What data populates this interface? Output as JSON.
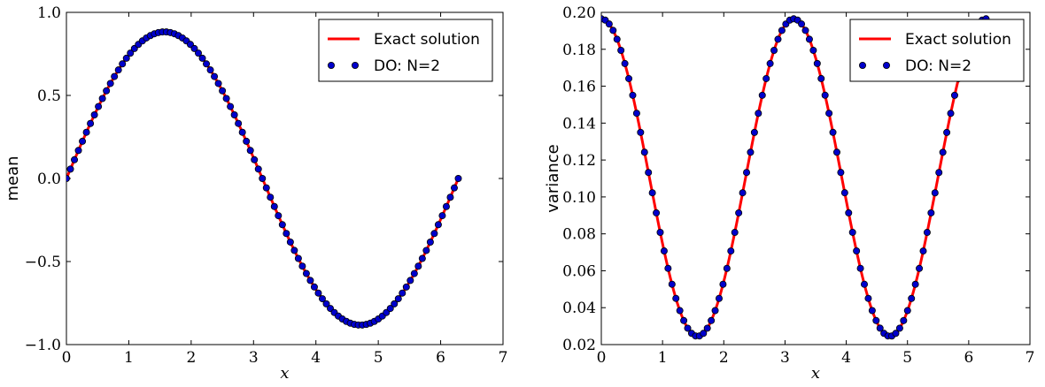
{
  "chart_data": [
    {
      "type": "line",
      "title": "",
      "xlabel": "x",
      "ylabel": "mean",
      "xlim": [
        0,
        7
      ],
      "ylim": [
        -1.0,
        1.0
      ],
      "xticks": [
        0,
        1,
        2,
        3,
        4,
        5,
        6,
        7
      ],
      "xtick_labels": [
        "0",
        "1",
        "2",
        "3",
        "4",
        "5",
        "6",
        "7"
      ],
      "yticks": [
        -1.0,
        -0.5,
        0.0,
        0.5,
        1.0
      ],
      "ytick_labels": [
        "−1.0",
        "−0.5",
        "0.0",
        "0.5",
        "1.0"
      ],
      "grid": false,
      "legend_position": "top-right",
      "x": [
        0.0,
        0.0641,
        0.1282,
        0.1923,
        0.2565,
        0.3206,
        0.3847,
        0.4488,
        0.5129,
        0.577,
        0.6411,
        0.7052,
        0.7694,
        0.8335,
        0.8976,
        0.9617,
        1.0258,
        1.0899,
        1.154,
        1.2181,
        1.2823,
        1.3464,
        1.4105,
        1.4746,
        1.5387,
        1.6028,
        1.6669,
        1.731,
        1.7952,
        1.8593,
        1.9234,
        1.9875,
        2.0516,
        2.1157,
        2.1798,
        2.2439,
        2.3081,
        2.3722,
        2.4363,
        2.5004,
        2.5645,
        2.6286,
        2.6927,
        2.7568,
        2.821,
        2.8851,
        2.9492,
        3.0133,
        3.0774,
        3.1415,
        3.2056,
        3.2697,
        3.3339,
        3.398,
        3.4621,
        3.5262,
        3.5903,
        3.6544,
        3.7185,
        3.7826,
        3.8468,
        3.9109,
        3.975,
        4.0391,
        4.1032,
        4.1673,
        4.2314,
        4.2955,
        4.3597,
        4.4238,
        4.4879,
        4.552,
        4.6161,
        4.6802,
        4.7443,
        4.8084,
        4.8726,
        4.9367,
        5.0008,
        5.0649,
        5.129,
        5.1931,
        5.2572,
        5.3213,
        5.3855,
        5.4496,
        5.5137,
        5.5778,
        5.6419,
        5.706,
        5.7701,
        5.8342,
        5.8984,
        5.9625,
        6.0266,
        6.0907,
        6.1548,
        6.2189,
        6.2831
      ],
      "series": [
        {
          "name": "Exact solution",
          "style": "line",
          "color": "#ff0000",
          "function": "0.8825*sin(x)"
        },
        {
          "name": "DO: N=2",
          "style": "markers",
          "color": "#0000cc",
          "values": [
            0.0,
            0.0565,
            0.1128,
            0.1686,
            0.2236,
            0.2775,
            0.3303,
            0.3815,
            0.4309,
            0.4783,
            0.5236,
            0.5664,
            0.6065,
            0.6439,
            0.6783,
            0.7096,
            0.7376,
            0.7623,
            0.8144,
            0.8318,
            0.8457,
            0.8563,
            0.8636,
            0.8674,
            0.8678,
            0.8648,
            0.8585,
            0.8488,
            0.8358,
            0.8196,
            0.8003,
            0.7779,
            0.7525,
            0.7243,
            0.6934,
            0.66,
            0.6241,
            0.586,
            0.5457,
            0.5035,
            0.4596,
            0.414,
            0.3671,
            0.319,
            0.2699,
            0.22,
            0.1696,
            0.1188,
            0.0564,
            0.0,
            -0.0565,
            -0.1128,
            -0.1686,
            -0.2236,
            -0.2775,
            -0.3303,
            -0.3815,
            -0.4309,
            -0.4783,
            -0.5236,
            -0.5664,
            -0.6065,
            -0.6439,
            -0.6783,
            -0.7096,
            -0.7376,
            -0.7623,
            -0.7835,
            -0.8012,
            -0.8154,
            -0.8258,
            -0.8327,
            -0.8358,
            -0.8353,
            -0.8311,
            -0.8233,
            -0.8119,
            -0.7969,
            -0.7785,
            -0.7568,
            -0.7319,
            -0.7038,
            -0.6728,
            -0.639,
            -0.6024,
            -0.5634,
            -0.522,
            -0.4784,
            -0.4327,
            -0.3853,
            -0.3362,
            -0.2856,
            -0.2338,
            -0.181,
            -0.1273,
            -0.073,
            -0.0183,
            0.0366,
            0.0
          ]
        }
      ]
    },
    {
      "type": "line",
      "title": "",
      "xlabel": "x",
      "ylabel": "variance",
      "xlim": [
        0,
        7
      ],
      "ylim": [
        0.02,
        0.2
      ],
      "xticks": [
        0,
        1,
        2,
        3,
        4,
        5,
        6,
        7
      ],
      "xtick_labels": [
        "0",
        "1",
        "2",
        "3",
        "4",
        "5",
        "6",
        "7"
      ],
      "yticks": [
        0.02,
        0.04,
        0.06,
        0.08,
        0.1,
        0.12,
        0.14,
        0.16,
        0.18,
        0.2
      ],
      "ytick_labels": [
        "0.02",
        "0.04",
        "0.06",
        "0.08",
        "0.10",
        "0.12",
        "0.14",
        "0.16",
        "0.18",
        "0.20"
      ],
      "grid": false,
      "legend_position": "top-right",
      "x": [
        0.0,
        0.0641,
        0.1282,
        0.1923,
        0.2565,
        0.3206,
        0.3847,
        0.4488,
        0.5129,
        0.577,
        0.6411,
        0.7052,
        0.7694,
        0.8335,
        0.8976,
        0.9617,
        1.0258,
        1.0899,
        1.154,
        1.2181,
        1.2823,
        1.3464,
        1.4105,
        1.4746,
        1.5387,
        1.6028,
        1.6669,
        1.731,
        1.7952,
        1.8593,
        1.9234,
        1.9875,
        2.0516,
        2.1157,
        2.1798,
        2.2439,
        2.3081,
        2.3722,
        2.4363,
        2.5004,
        2.5645,
        2.6286,
        2.6927,
        2.7568,
        2.821,
        2.8851,
        2.9492,
        3.0133,
        3.0774,
        3.1415,
        3.2056,
        3.2697,
        3.3339,
        3.398,
        3.4621,
        3.5262,
        3.5903,
        3.6544,
        3.7185,
        3.7826,
        3.8468,
        3.9109,
        3.975,
        4.0391,
        4.1032,
        4.1673,
        4.2314,
        4.2955,
        4.3597,
        4.4238,
        4.4879,
        4.552,
        4.6161,
        4.6802,
        4.7443,
        4.8084,
        4.8726,
        4.9367,
        5.0008,
        5.0649,
        5.129,
        5.1931,
        5.2572,
        5.3213,
        5.3855,
        5.4496,
        5.5137,
        5.5778,
        5.6419,
        5.706,
        5.7701,
        5.8342,
        5.8984,
        5.9625,
        6.0266,
        6.0907,
        6.1548,
        6.2189,
        6.2831
      ],
      "series": [
        {
          "name": "Exact solution",
          "style": "line",
          "color": "#ff0000",
          "function": "0.0245 + 0.1720*cos(x)^2"
        },
        {
          "name": "DO: N=2",
          "style": "markers",
          "color": "#0000cc",
          "values": [
            0.1965,
            0.1958,
            0.1937,
            0.1902,
            0.1854,
            0.1794,
            0.1722,
            0.164,
            0.1548,
            0.1448,
            0.1341,
            0.123,
            0.1115,
            0.0998,
            0.0882,
            0.0768,
            0.0658,
            0.0555,
            0.0459,
            0.0373,
            0.0299,
            0.0238,
            0.0193,
            0.0164,
            0.0152,
            0.0159,
            0.0184,
            0.0225,
            0.0281,
            0.0352,
            0.0435,
            0.0529,
            0.0631,
            0.0739,
            0.0852,
            0.0967,
            0.1081,
            0.1193,
            0.13,
            0.14,
            0.1491,
            0.1572,
            0.1641,
            0.1698,
            0.1741,
            0.177,
            0.1785,
            0.1786,
            0.1773,
            0.1965,
            0.1958,
            0.1937,
            0.1902,
            0.1854,
            0.1794,
            0.1722,
            0.164,
            0.1548,
            0.1448,
            0.1341,
            0.123,
            0.1115,
            0.0998,
            0.0882,
            0.0768,
            0.0658,
            0.0555,
            0.0459,
            0.0373,
            0.0299,
            0.0238,
            0.0193,
            0.0164,
            0.0152,
            0.0159,
            0.0184,
            0.0225,
            0.0281,
            0.0352,
            0.0435,
            0.0529,
            0.0631,
            0.0739,
            0.0852,
            0.0967,
            0.1081,
            0.1193,
            0.13,
            0.14,
            0.1491,
            0.1572,
            0.1641,
            0.1698,
            0.1741,
            0.177,
            0.1785,
            0.1786,
            0.1773,
            0.1965
          ]
        }
      ]
    }
  ],
  "legend_swatch_colors": {
    "line": "#ff0000",
    "marker_fill": "#0000cc",
    "marker_edge": "#000000"
  }
}
